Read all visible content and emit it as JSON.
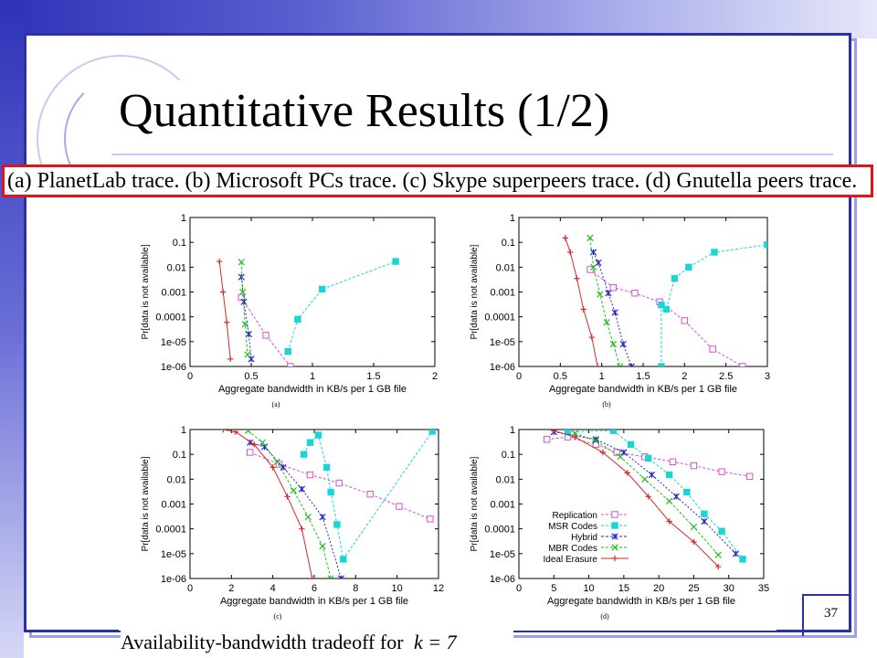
{
  "slide": {
    "title": "Quantitative Results (1/2)",
    "caption": "(a) PlanetLab trace. (b) Microsoft PCs trace. (c) Skype superpeers trace. (d) Gnutella peers trace.",
    "bottom_caption_prefix": "Availability-bandwidth tradeoff for",
    "bottom_caption_math": "k = 7",
    "page_number": "37",
    "colors": {
      "frame": "#2b2fa8",
      "caption_border": "#e0151c"
    }
  },
  "chart_data": [
    {
      "id": "a",
      "type": "line",
      "panel_label": "(a)",
      "xlabel": "Aggregate bandwidth in KB/s per 1 GB file",
      "ylabel": "Pr[data is not available]",
      "xlim": [
        0,
        2
      ],
      "xticks": [
        0,
        0.5,
        1,
        1.5,
        2
      ],
      "xtick_labels": [
        "0",
        "0.5",
        "1",
        "1.5",
        "2"
      ],
      "y_scale": "log",
      "yticks": [
        "1",
        "0.1",
        "0.01",
        "0.001",
        "0.0001",
        "1e-05",
        "1e-06"
      ],
      "series": [
        {
          "name": "Replication",
          "color": "#d451d4",
          "marker": "square-open",
          "points": [
            [
              0.42,
              0.0006
            ],
            [
              0.62,
              1.8e-05
            ],
            [
              0.82,
              1e-06
            ]
          ]
        },
        {
          "name": "MSR Codes",
          "color": "#19d6d6",
          "marker": "square-filled",
          "points": [
            [
              0.8,
              4e-06
            ],
            [
              0.88,
              8e-05
            ],
            [
              1.08,
              0.0013
            ],
            [
              1.68,
              0.017
            ]
          ]
        },
        {
          "name": "Hybrid",
          "color": "#2626c8",
          "marker": "star",
          "points": [
            [
              0.42,
              0.004
            ],
            [
              0.44,
              0.0004
            ],
            [
              0.48,
              2e-05
            ],
            [
              0.5,
              2e-06
            ]
          ]
        },
        {
          "name": "MBR Codes",
          "color": "#1fbf1f",
          "marker": "x",
          "points": [
            [
              0.42,
              0.016
            ],
            [
              0.43,
              0.001
            ],
            [
              0.45,
              5e-05
            ],
            [
              0.47,
              3e-06
            ]
          ]
        },
        {
          "name": "Ideal Erasure",
          "color": "#d62828",
          "marker": "plus",
          "points": [
            [
              0.24,
              0.017
            ],
            [
              0.27,
              0.001
            ],
            [
              0.3,
              6e-05
            ],
            [
              0.33,
              2e-06
            ]
          ]
        }
      ]
    },
    {
      "id": "b",
      "type": "line",
      "panel_label": "(b)",
      "xlabel": "Aggregate bandwidth in KB/s per 1 GB file",
      "ylabel": "Pr[data is not available]",
      "xlim": [
        0,
        3
      ],
      "xticks": [
        0,
        0.5,
        1,
        1.5,
        2,
        2.5,
        3
      ],
      "xtick_labels": [
        "0",
        "0.5",
        "1",
        "1.5",
        "2",
        "2.5",
        "3"
      ],
      "y_scale": "log",
      "yticks": [
        "1",
        "0.1",
        "0.01",
        "0.001",
        "0.0001",
        "1e-05",
        "1e-06"
      ],
      "series": [
        {
          "name": "Replication",
          "color": "#d451d4",
          "marker": "square-open",
          "points": [
            [
              0.86,
              0.008
            ],
            [
              1.14,
              0.0015
            ],
            [
              1.4,
              0.0009
            ],
            [
              1.7,
              0.0004
            ],
            [
              2.0,
              7e-05
            ],
            [
              2.34,
              5e-06
            ],
            [
              2.7,
              1e-06
            ]
          ]
        },
        {
          "name": "MSR Codes",
          "color": "#19d6d6",
          "marker": "square-filled",
          "points": [
            [
              1.72,
              1e-06
            ],
            [
              1.72,
              0.0003
            ],
            [
              1.78,
              0.0002
            ],
            [
              1.88,
              0.0035
            ],
            [
              2.05,
              0.01
            ],
            [
              2.36,
              0.04
            ],
            [
              3.0,
              0.08
            ]
          ]
        },
        {
          "name": "Hybrid",
          "color": "#2626c8",
          "marker": "star",
          "points": [
            [
              0.9,
              0.04
            ],
            [
              0.96,
              0.015
            ],
            [
              1.08,
              0.0009
            ],
            [
              1.16,
              0.00015
            ],
            [
              1.26,
              8e-06
            ],
            [
              1.36,
              1e-06
            ]
          ]
        },
        {
          "name": "MBR Codes",
          "color": "#1fbf1f",
          "marker": "x",
          "points": [
            [
              0.86,
              0.15
            ],
            [
              0.9,
              0.01
            ],
            [
              0.98,
              0.0008
            ],
            [
              1.06,
              6e-05
            ],
            [
              1.14,
              8e-06
            ],
            [
              1.22,
              1e-06
            ]
          ]
        },
        {
          "name": "Ideal Erasure",
          "color": "#d62828",
          "marker": "plus",
          "points": [
            [
              0.56,
              0.15
            ],
            [
              0.62,
              0.04
            ],
            [
              0.7,
              0.0035
            ],
            [
              0.78,
              0.0002
            ],
            [
              0.88,
              1.5e-05
            ],
            [
              0.95,
              1e-06
            ]
          ]
        }
      ]
    },
    {
      "id": "c",
      "type": "line",
      "panel_label": "(c)",
      "xlabel": "Aggregate bandwidth in KB/s per 1 GB file",
      "ylabel": "Pr[data is not available]",
      "xlim": [
        0,
        12
      ],
      "xticks": [
        0,
        2,
        4,
        6,
        8,
        10,
        12
      ],
      "xtick_labels": [
        "0",
        "2",
        "4",
        "6",
        "8",
        "10",
        "12"
      ],
      "y_scale": "log",
      "yticks": [
        "1",
        "0.1",
        "0.01",
        "0.001",
        "0.0001",
        "1e-05",
        "1e-06"
      ],
      "series": [
        {
          "name": "Replication",
          "color": "#d451d4",
          "marker": "square-open",
          "points": [
            [
              2.9,
              0.12
            ],
            [
              4.3,
              0.04
            ],
            [
              5.8,
              0.015
            ],
            [
              7.2,
              0.007
            ],
            [
              8.7,
              0.0025
            ],
            [
              10.1,
              0.0008
            ],
            [
              11.6,
              0.00025
            ]
          ]
        },
        {
          "name": "MSR Codes",
          "color": "#19d6d6",
          "marker": "square-filled",
          "points": [
            [
              5.5,
              0.1
            ],
            [
              5.8,
              0.3
            ],
            [
              6.2,
              0.6
            ],
            [
              6.6,
              0.03
            ],
            [
              6.8,
              0.003
            ],
            [
              7.1,
              0.00015
            ],
            [
              7.4,
              6e-06
            ],
            [
              11.7,
              0.85
            ]
          ]
        },
        {
          "name": "Hybrid",
          "color": "#2626c8",
          "marker": "star",
          "points": [
            [
              2.9,
              0.3
            ],
            [
              3.6,
              0.2
            ],
            [
              4.5,
              0.03
            ],
            [
              5.4,
              0.004
            ],
            [
              6.4,
              0.0003
            ],
            [
              7.3,
              1e-06
            ]
          ]
        },
        {
          "name": "MBR Codes",
          "color": "#1fbf1f",
          "marker": "x",
          "points": [
            [
              2.8,
              0.9
            ],
            [
              3.5,
              0.3
            ],
            [
              4.2,
              0.05
            ],
            [
              5.0,
              0.0035
            ],
            [
              5.7,
              0.0003
            ],
            [
              6.4,
              2e-05
            ],
            [
              6.8,
              1e-06
            ]
          ]
        },
        {
          "name": "Ideal Erasure",
          "color": "#d62828",
          "marker": "plus",
          "points": [
            [
              1.6,
              1.0
            ],
            [
              2.2,
              0.8
            ],
            [
              3.1,
              0.25
            ],
            [
              4.0,
              0.03
            ],
            [
              4.7,
              0.002
            ],
            [
              5.4,
              0.0001
            ],
            [
              5.9,
              1e-06
            ]
          ]
        }
      ]
    },
    {
      "id": "d",
      "type": "line",
      "panel_label": "(d)",
      "xlabel": "Aggregate bandwidth in KB/s per 1 GB file",
      "ylabel": "Pr[data is not available]",
      "xlim": [
        0,
        35
      ],
      "xticks": [
        0,
        5,
        10,
        15,
        20,
        25,
        30,
        35
      ],
      "xtick_labels": [
        "0",
        "5",
        "10",
        "15",
        "20",
        "25",
        "30",
        "35"
      ],
      "y_scale": "log",
      "yticks": [
        "1",
        "0.1",
        "0.01",
        "0.001",
        "0.0001",
        "1e-05",
        "1e-06"
      ],
      "legend_position": "bottom-left",
      "legend": [
        "Replication",
        "MSR Codes",
        "Hybrid",
        "MBR Codes",
        "Ideal Erasure"
      ],
      "series": [
        {
          "name": "Replication",
          "color": "#d451d4",
          "marker": "square-open",
          "points": [
            [
              4.0,
              0.4
            ],
            [
              7.0,
              0.5
            ],
            [
              11.0,
              0.25
            ],
            [
              14.0,
              0.12
            ],
            [
              18.0,
              0.08
            ],
            [
              22.0,
              0.05
            ],
            [
              25.0,
              0.035
            ],
            [
              29.0,
              0.02
            ],
            [
              33.0,
              0.013
            ]
          ]
        },
        {
          "name": "MSR Codes",
          "color": "#19d6d6",
          "marker": "square-filled",
          "points": [
            [
              7.0,
              0.8
            ],
            [
              13.5,
              0.9
            ],
            [
              16.0,
              0.25
            ],
            [
              18.5,
              0.07
            ],
            [
              21.5,
              0.015
            ],
            [
              24.0,
              0.003
            ],
            [
              26.5,
              0.0004
            ],
            [
              29.0,
              8e-05
            ],
            [
              32.0,
              6e-06
            ]
          ]
        },
        {
          "name": "Hybrid",
          "color": "#2626c8",
          "marker": "star",
          "points": [
            [
              5.0,
              0.8
            ],
            [
              11.0,
              0.4
            ],
            [
              15.0,
              0.12
            ],
            [
              19.0,
              0.015
            ],
            [
              22.5,
              0.002
            ],
            [
              26.5,
              0.0002
            ],
            [
              31.0,
              1e-05
            ]
          ]
        },
        {
          "name": "MBR Codes",
          "color": "#1fbf1f",
          "marker": "x",
          "points": [
            [
              8.0,
              0.7
            ],
            [
              11.0,
              0.35
            ],
            [
              14.5,
              0.08
            ],
            [
              18.0,
              0.01
            ],
            [
              21.5,
              0.0013
            ],
            [
              25.0,
              0.00012
            ],
            [
              28.5,
              9e-06
            ]
          ]
        },
        {
          "name": "Ideal Erasure",
          "color": "#d62828",
          "marker": "plus",
          "points": [
            [
              5.0,
              0.9
            ],
            [
              8.0,
              0.5
            ],
            [
              12.0,
              0.12
            ],
            [
              15.5,
              0.018
            ],
            [
              18.5,
              0.002
            ],
            [
              21.5,
              0.0002
            ],
            [
              25.0,
              3e-05
            ],
            [
              28.5,
              3e-06
            ]
          ]
        }
      ]
    }
  ]
}
